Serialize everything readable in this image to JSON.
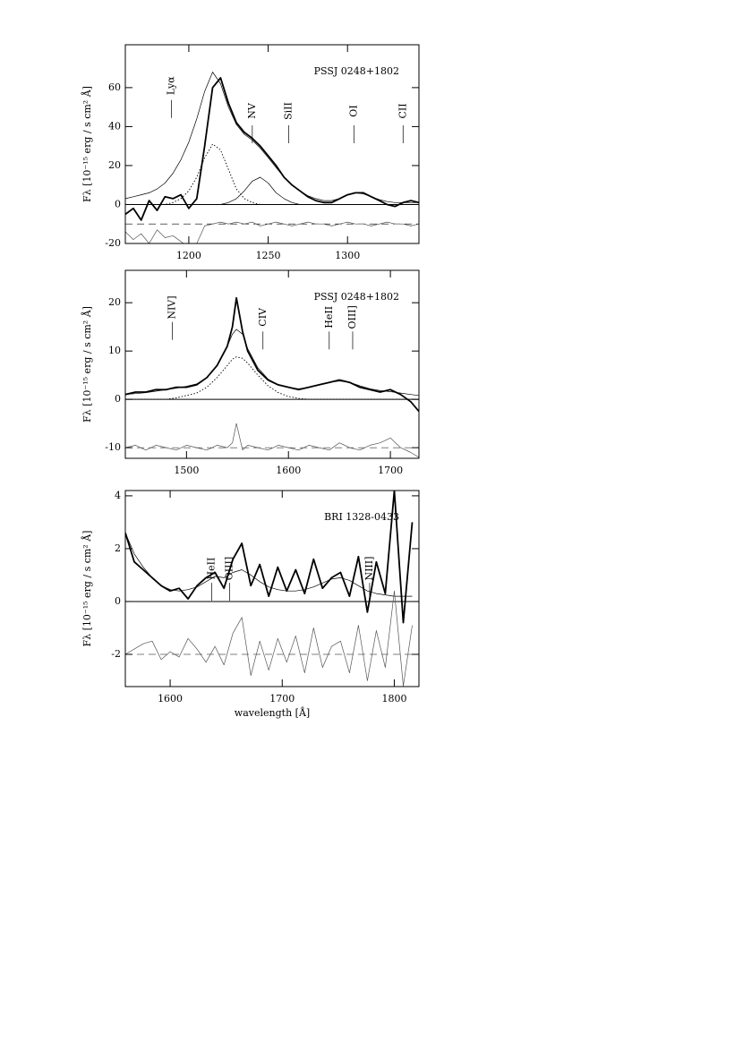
{
  "chart_data": [
    {
      "type": "line",
      "title": "PSSJ  0248+1802",
      "y_label": "Fλ  [10⁻¹⁵ erg / s cm² Å]",
      "xlim": [
        1160,
        1345
      ],
      "ylim": [
        -20,
        82
      ],
      "xticks": [
        1200,
        1250,
        1300
      ],
      "yticks": [
        -20,
        0,
        20,
        40,
        60
      ],
      "residual_baseline": -10,
      "x": [
        1160,
        1165,
        1170,
        1175,
        1180,
        1185,
        1190,
        1195,
        1200,
        1205,
        1210,
        1215,
        1220,
        1225,
        1230,
        1235,
        1240,
        1245,
        1250,
        1255,
        1260,
        1265,
        1270,
        1275,
        1280,
        1285,
        1290,
        1295,
        1300,
        1305,
        1310,
        1315,
        1320,
        1325,
        1330,
        1335,
        1340,
        1345
      ],
      "series": [
        {
          "color": "#000000",
          "style": "thick",
          "values": [
            -5,
            -2,
            -8,
            2,
            -3,
            4,
            3,
            5,
            -2,
            3,
            30,
            60,
            65,
            52,
            42,
            37,
            34,
            30,
            25,
            20,
            14,
            10,
            7,
            4,
            2,
            1,
            1,
            3,
            5,
            6,
            6,
            4,
            2,
            0,
            -1,
            1,
            2,
            1
          ]
        },
        {
          "color": "#000000",
          "style": "thin",
          "values": [
            3,
            4,
            5,
            6,
            8,
            11,
            16,
            23,
            32,
            44,
            58,
            68,
            62,
            50,
            41,
            36,
            33,
            29,
            24,
            19,
            14,
            10,
            7,
            4.5,
            3,
            2,
            2,
            3,
            5,
            6,
            5.5,
            4,
            2.5,
            1.5,
            1,
            1,
            1,
            1
          ]
        },
        {
          "color": "#000000",
          "style": "dotted",
          "values": [
            0,
            0,
            0,
            0,
            0,
            0,
            1,
            3,
            7,
            14,
            24,
            31,
            28,
            18,
            8,
            3,
            1,
            0,
            0,
            0,
            0,
            0,
            0,
            0,
            0,
            0,
            0,
            0,
            0,
            0,
            0,
            0,
            0,
            0,
            0,
            0,
            0,
            0
          ]
        },
        {
          "color": "#000000",
          "style": "thin",
          "values": [
            0,
            0,
            0,
            0,
            0,
            0,
            0,
            0,
            0,
            0,
            0,
            0,
            0,
            1,
            3,
            7,
            12,
            14,
            11,
            6,
            3,
            1,
            0,
            0,
            0,
            0,
            0,
            0,
            0,
            0,
            0,
            0,
            0,
            0,
            0,
            0,
            0,
            0
          ]
        },
        {
          "color": "#555555",
          "style": "thin",
          "values": [
            -14,
            -18,
            -15,
            -20,
            -13,
            -17,
            -16,
            -19,
            -22,
            -20,
            -11,
            -10,
            -9,
            -10,
            -9,
            -10,
            -9,
            -11,
            -10,
            -9,
            -10,
            -11,
            -10,
            -9,
            -10,
            -10,
            -11,
            -10,
            -9,
            -10,
            -10,
            -11,
            -10,
            -9,
            -10,
            -10,
            -11,
            -10
          ]
        }
      ],
      "annotations": [
        {
          "text": "Lyα",
          "x": 1189,
          "y": 61
        },
        {
          "text": "NV",
          "x": 1240,
          "y": 48
        },
        {
          "text": "SiII",
          "x": 1263,
          "y": 48
        },
        {
          "text": "OI",
          "x": 1304,
          "y": 48
        },
        {
          "text": "CII",
          "x": 1335,
          "y": 48
        }
      ]
    },
    {
      "type": "line",
      "title": "PSSJ  0248+1802",
      "y_label": "Fλ  [10⁻¹⁵ erg / s cm² Å]",
      "xlim": [
        1440,
        1728
      ],
      "ylim": [
        -12.2,
        26.7
      ],
      "xticks": [
        1500,
        1600,
        1700
      ],
      "yticks": [
        -10,
        0,
        10,
        20
      ],
      "residual_baseline": -10,
      "x": [
        1440,
        1450,
        1460,
        1470,
        1480,
        1490,
        1500,
        1510,
        1520,
        1530,
        1540,
        1545,
        1549,
        1555,
        1560,
        1570,
        1580,
        1590,
        1600,
        1610,
        1620,
        1630,
        1640,
        1650,
        1660,
        1670,
        1680,
        1690,
        1700,
        1710,
        1720,
        1728
      ],
      "series": [
        {
          "color": "#000000",
          "style": "thick",
          "values": [
            1,
            1.5,
            1.5,
            2,
            2,
            2.5,
            2.5,
            3,
            4.5,
            7,
            11,
            15,
            21,
            14,
            10,
            6,
            4,
            3,
            2.5,
            2,
            2.5,
            3,
            3.5,
            4,
            3.5,
            2.5,
            2,
            1.5,
            2,
            1,
            -0.5,
            -2.5
          ]
        },
        {
          "color": "#000000",
          "style": "thin",
          "values": [
            1,
            1.2,
            1.4,
            1.7,
            2,
            2.3,
            2.7,
            3.2,
            4.5,
            7,
            11,
            13.5,
            14.5,
            13.5,
            10.5,
            6.5,
            4.2,
            3,
            2.5,
            2.2,
            2.5,
            3,
            3.5,
            3.8,
            3.5,
            2.8,
            2.2,
            1.8,
            1.6,
            1.3,
            1,
            0.8
          ]
        },
        {
          "color": "#000000",
          "style": "dotted",
          "values": [
            0,
            0,
            0,
            0,
            0,
            0.3,
            0.8,
            1.3,
            2.5,
            4.5,
            7,
            8.3,
            8.8,
            8.5,
            7.5,
            5,
            2.8,
            1.4,
            0.6,
            0.2,
            0,
            0,
            0,
            0,
            0,
            0,
            0,
            0,
            0,
            0,
            0,
            0
          ]
        },
        {
          "color": "#555555",
          "style": "thin",
          "values": [
            -10,
            -9.5,
            -10.5,
            -9.5,
            -10,
            -10.5,
            -9.5,
            -10,
            -10.5,
            -9.5,
            -10,
            -9,
            -5,
            -10.5,
            -9.5,
            -10,
            -10.5,
            -9.5,
            -10,
            -10.5,
            -9.5,
            -10,
            -10.5,
            -9,
            -10,
            -10.5,
            -9.5,
            -9,
            -8,
            -10,
            -11,
            -12
          ]
        }
      ],
      "annotations": [
        {
          "text": "NIV]",
          "x": 1486,
          "y": 19
        },
        {
          "text": "CIV",
          "x": 1575,
          "y": 17
        },
        {
          "text": "HeII",
          "x": 1640,
          "y": 17
        },
        {
          "text": "OIII]",
          "x": 1663,
          "y": 17
        }
      ]
    },
    {
      "type": "line",
      "title": "BRI  1328-0433",
      "y_label": "Fλ  [10⁻¹⁵ erg / s cm² Å]",
      "x_label": "wavelength [Å]",
      "xlim": [
        1560,
        1822
      ],
      "ylim": [
        -3.22,
        4.2
      ],
      "xticks": [
        1600,
        1700,
        1800
      ],
      "yticks": [
        -2,
        0,
        2,
        4
      ],
      "residual_baseline": -2,
      "x": [
        1560,
        1568,
        1576,
        1584,
        1592,
        1600,
        1608,
        1616,
        1624,
        1632,
        1640,
        1648,
        1656,
        1664,
        1672,
        1680,
        1688,
        1696,
        1704,
        1712,
        1720,
        1728,
        1736,
        1744,
        1752,
        1760,
        1768,
        1776,
        1784,
        1792,
        1800,
        1808,
        1816
      ],
      "series": [
        {
          "color": "#000000",
          "style": "thick",
          "values": [
            2.6,
            1.5,
            1.2,
            0.9,
            0.6,
            0.4,
            0.5,
            0.1,
            0.6,
            0.9,
            1.1,
            0.5,
            1.6,
            2.2,
            0.6,
            1.4,
            0.2,
            1.3,
            0.4,
            1.2,
            0.3,
            1.6,
            0.5,
            0.9,
            1.1,
            0.2,
            1.7,
            -0.4,
            1.5,
            0.3,
            4.2,
            -0.8,
            3.0
          ]
        },
        {
          "color": "#000000",
          "style": "thin",
          "values": [
            2.6,
            1.8,
            1.3,
            0.9,
            0.6,
            0.45,
            0.4,
            0.45,
            0.55,
            0.75,
            0.95,
            0.9,
            1.1,
            1.2,
            1.0,
            0.75,
            0.55,
            0.45,
            0.4,
            0.4,
            0.45,
            0.55,
            0.7,
            0.85,
            0.9,
            0.8,
            0.6,
            0.4,
            0.3,
            0.25,
            0.2,
            0.2,
            0.2
          ]
        },
        {
          "color": "#555555",
          "style": "thin",
          "values": [
            -2,
            -1.8,
            -1.6,
            -1.5,
            -2.2,
            -1.9,
            -2.1,
            -1.4,
            -1.8,
            -2.3,
            -1.7,
            -2.4,
            -1.2,
            -0.6,
            -2.8,
            -1.5,
            -2.6,
            -1.4,
            -2.3,
            -1.3,
            -2.7,
            -1.0,
            -2.5,
            -1.7,
            -1.5,
            -2.7,
            -0.9,
            -3.0,
            -1.1,
            -2.5,
            0.4,
            -3.2,
            -0.9
          ]
        }
      ],
      "annotations": [
        {
          "text": "HeII",
          "x": 1637,
          "y": 1.25
        },
        {
          "text": "OIII]",
          "x": 1653,
          "y": 1.25
        },
        {
          "text": "NIII]",
          "x": 1778,
          "y": 1.25
        }
      ]
    }
  ]
}
